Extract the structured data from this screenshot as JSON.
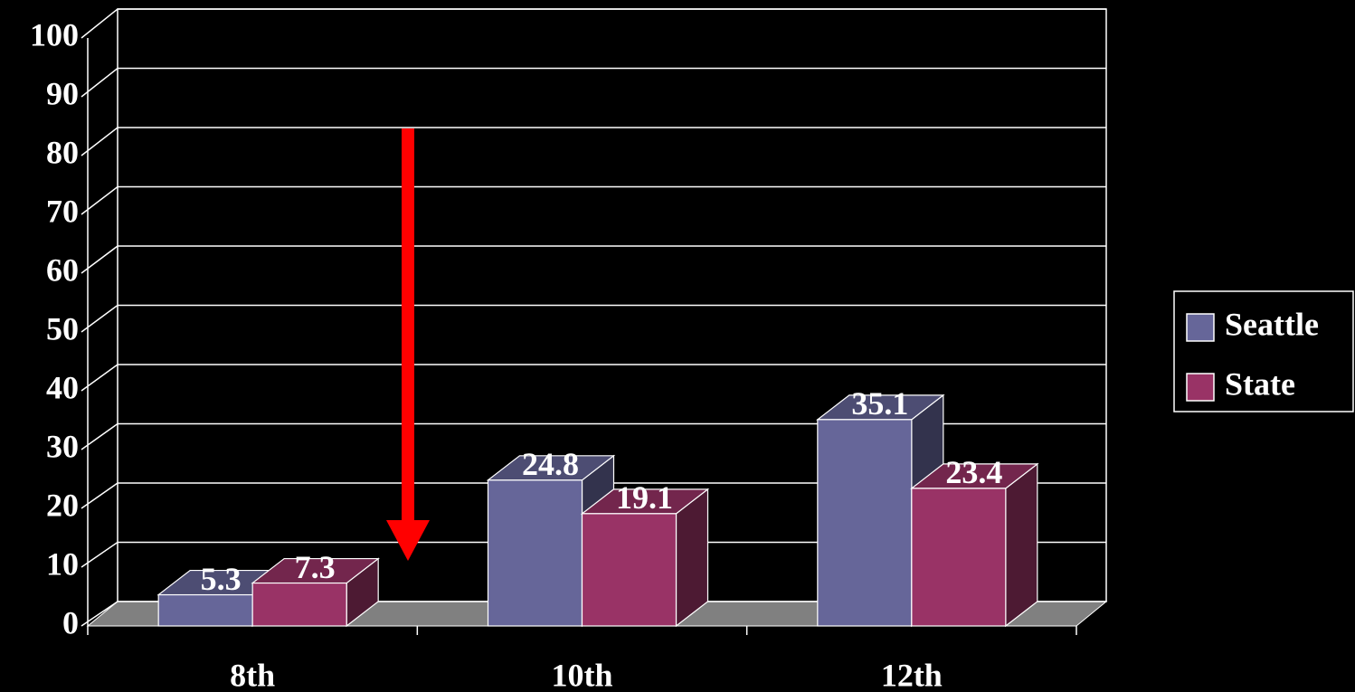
{
  "chart_data": {
    "type": "bar3d",
    "categories": [
      "8th",
      "10th",
      "12th"
    ],
    "series": [
      {
        "name": "Seattle",
        "color": "#666699",
        "values": [
          5.3,
          24.8,
          35.1
        ]
      },
      {
        "name": "State",
        "color": "#993366",
        "values": [
          7.3,
          19.1,
          23.4
        ]
      }
    ],
    "ylim": [
      0,
      100
    ],
    "yticks": [
      0,
      10,
      20,
      30,
      40,
      50,
      60,
      70,
      80,
      90,
      100
    ],
    "grid": true,
    "legend": "right"
  }
}
